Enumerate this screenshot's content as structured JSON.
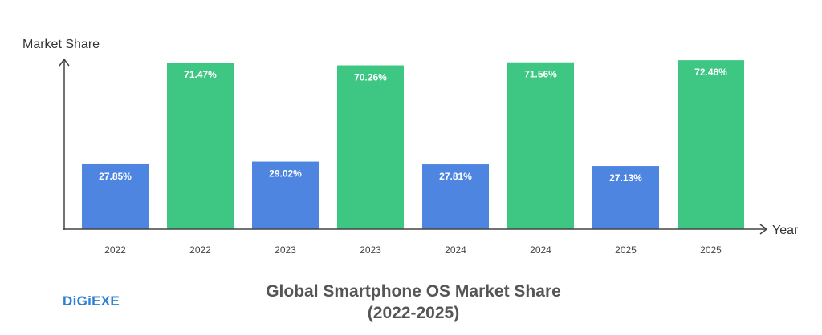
{
  "chart_data": {
    "type": "bar",
    "title": "Global Smartphone OS Market Share (2022-2025)",
    "xlabel": "Year",
    "ylabel": "Market Share",
    "categories": [
      "2022",
      "2022",
      "2023",
      "2023",
      "2024",
      "2024",
      "2025",
      "2025"
    ],
    "values": [
      27.85,
      71.47,
      29.02,
      70.26,
      27.81,
      71.56,
      27.13,
      72.46
    ],
    "data_labels": [
      "27.85%",
      "71.47%",
      "29.02%",
      "70.26%",
      "27.81%",
      "71.56%",
      "27.13%",
      "72.46%"
    ],
    "bar_colors": [
      "#4e85e0",
      "#3ec783",
      "#4e85e0",
      "#3ec783",
      "#4e85e0",
      "#3ec783",
      "#4e85e0",
      "#3ec783"
    ],
    "ylim": [
      0,
      75
    ],
    "grid": false,
    "legend": "none"
  },
  "logo": "DiGiEXE"
}
